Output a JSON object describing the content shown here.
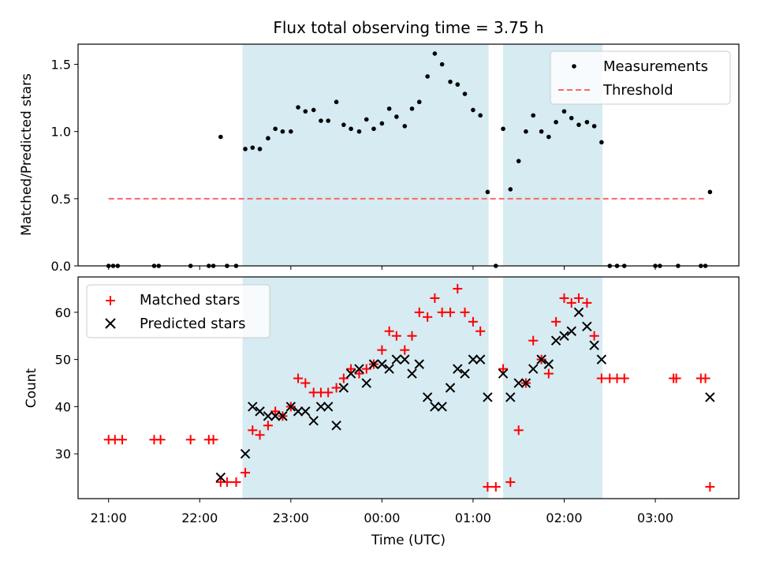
{
  "chart_data": [
    {
      "type": "scatter",
      "title": "Flux total observing time = 3.75 h",
      "xlabel": "",
      "ylabel": "Matched/Predicted stars",
      "xlim_hours": [
        20.665,
        27.917
      ],
      "ylim": [
        0,
        1.65
      ],
      "yticks": [
        0.0,
        0.5,
        1.0,
        1.5
      ],
      "ytick_labels": [
        "0.0",
        "0.5",
        "1.0",
        "1.5"
      ],
      "legend_position": "upper-right",
      "series": [
        {
          "name": "Measurements",
          "marker": "dot",
          "color": "#000000",
          "points": [
            [
              21.0,
              0
            ],
            [
              21.05,
              0
            ],
            [
              21.1,
              0
            ],
            [
              21.5,
              0
            ],
            [
              21.55,
              0
            ],
            [
              21.9,
              0
            ],
            [
              22.1,
              0
            ],
            [
              22.15,
              0
            ],
            [
              22.23,
              0.96
            ],
            [
              22.3,
              0
            ],
            [
              22.4,
              0
            ],
            [
              22.5,
              0.87
            ],
            [
              22.58,
              0.88
            ],
            [
              22.66,
              0.87
            ],
            [
              22.75,
              0.95
            ],
            [
              22.83,
              1.02
            ],
            [
              22.91,
              1.0
            ],
            [
              23.0,
              1.0
            ],
            [
              23.08,
              1.18
            ],
            [
              23.16,
              1.15
            ],
            [
              23.25,
              1.16
            ],
            [
              23.33,
              1.08
            ],
            [
              23.41,
              1.08
            ],
            [
              23.5,
              1.22
            ],
            [
              23.58,
              1.05
            ],
            [
              23.66,
              1.02
            ],
            [
              23.75,
              1.0
            ],
            [
              23.83,
              1.09
            ],
            [
              23.91,
              1.02
            ],
            [
              24.0,
              1.06
            ],
            [
              24.08,
              1.17
            ],
            [
              24.16,
              1.11
            ],
            [
              24.25,
              1.04
            ],
            [
              24.33,
              1.17
            ],
            [
              24.41,
              1.22
            ],
            [
              24.5,
              1.41
            ],
            [
              24.58,
              1.58
            ],
            [
              24.66,
              1.5
            ],
            [
              24.75,
              1.37
            ],
            [
              24.83,
              1.35
            ],
            [
              24.91,
              1.28
            ],
            [
              25.0,
              1.16
            ],
            [
              25.08,
              1.12
            ],
            [
              25.16,
              0.55
            ],
            [
              25.25,
              0
            ],
            [
              25.33,
              1.02
            ],
            [
              25.41,
              0.57
            ],
            [
              25.5,
              0.78
            ],
            [
              25.58,
              1.0
            ],
            [
              25.66,
              1.12
            ],
            [
              25.75,
              1.0
            ],
            [
              25.83,
              0.96
            ],
            [
              25.91,
              1.07
            ],
            [
              26.0,
              1.15
            ],
            [
              26.08,
              1.1
            ],
            [
              26.16,
              1.05
            ],
            [
              26.25,
              1.07
            ],
            [
              26.33,
              1.04
            ],
            [
              26.41,
              0.92
            ],
            [
              26.5,
              0
            ],
            [
              26.58,
              0
            ],
            [
              26.66,
              0
            ],
            [
              27.0,
              0
            ],
            [
              27.05,
              0
            ],
            [
              27.25,
              0
            ],
            [
              27.5,
              0
            ],
            [
              27.55,
              0
            ],
            [
              27.6,
              0.55
            ]
          ]
        },
        {
          "name": "Threshold",
          "style": "dashed",
          "color": "#ff6666",
          "x_range_hours": [
            21.0,
            27.55
          ],
          "y": 0.5
        }
      ]
    },
    {
      "type": "scatter",
      "title": "",
      "xlabel": "Time (UTC)",
      "ylabel": "Count",
      "xlim_hours": [
        20.665,
        27.917
      ],
      "ylim": [
        20.5,
        67.5
      ],
      "yticks": [
        30,
        40,
        50,
        60
      ],
      "ytick_labels": [
        "30",
        "40",
        "50",
        "60"
      ],
      "xticks_hours": [
        21,
        22,
        23,
        24,
        25,
        26,
        27
      ],
      "xtick_labels": [
        "21:00",
        "22:00",
        "23:00",
        "00:00",
        "01:00",
        "02:00",
        "03:00"
      ],
      "legend_position": "upper-left",
      "series": [
        {
          "name": "Matched stars",
          "marker": "plus",
          "color": "#ff0000",
          "points": [
            [
              21.0,
              33
            ],
            [
              21.07,
              33
            ],
            [
              21.15,
              33
            ],
            [
              21.5,
              33
            ],
            [
              21.57,
              33
            ],
            [
              21.9,
              33
            ],
            [
              22.1,
              33
            ],
            [
              22.15,
              33
            ],
            [
              22.23,
              24
            ],
            [
              22.3,
              24
            ],
            [
              22.4,
              24
            ],
            [
              22.5,
              26
            ],
            [
              22.58,
              35
            ],
            [
              22.66,
              34
            ],
            [
              22.75,
              36
            ],
            [
              22.83,
              39
            ],
            [
              22.91,
              38
            ],
            [
              23.0,
              40
            ],
            [
              23.08,
              46
            ],
            [
              23.16,
              45
            ],
            [
              23.25,
              43
            ],
            [
              23.33,
              43
            ],
            [
              23.41,
              43
            ],
            [
              23.5,
              44
            ],
            [
              23.58,
              46
            ],
            [
              23.66,
              48
            ],
            [
              23.75,
              47
            ],
            [
              23.83,
              48
            ],
            [
              23.91,
              49
            ],
            [
              24.0,
              52
            ],
            [
              24.08,
              56
            ],
            [
              24.16,
              55
            ],
            [
              24.25,
              52
            ],
            [
              24.33,
              55
            ],
            [
              24.41,
              60
            ],
            [
              24.5,
              59
            ],
            [
              24.58,
              63
            ],
            [
              24.66,
              60
            ],
            [
              24.75,
              60
            ],
            [
              24.83,
              65
            ],
            [
              24.91,
              60
            ],
            [
              25.0,
              58
            ],
            [
              25.08,
              56
            ],
            [
              25.16,
              23
            ],
            [
              25.25,
              23
            ],
            [
              25.33,
              48
            ],
            [
              25.41,
              24
            ],
            [
              25.5,
              35
            ],
            [
              25.58,
              45
            ],
            [
              25.66,
              54
            ],
            [
              25.75,
              50
            ],
            [
              25.83,
              47
            ],
            [
              25.91,
              58
            ],
            [
              26.0,
              63
            ],
            [
              26.08,
              62
            ],
            [
              26.16,
              63
            ],
            [
              26.25,
              62
            ],
            [
              26.33,
              55
            ],
            [
              26.41,
              46
            ],
            [
              26.5,
              46
            ],
            [
              26.58,
              46
            ],
            [
              26.66,
              46
            ],
            [
              27.2,
              46
            ],
            [
              27.23,
              46
            ],
            [
              27.5,
              46
            ],
            [
              27.55,
              46
            ],
            [
              27.6,
              23
            ]
          ]
        },
        {
          "name": "Predicted stars",
          "marker": "x",
          "color": "#000000",
          "points": [
            [
              22.23,
              25
            ],
            [
              22.5,
              30
            ],
            [
              22.58,
              40
            ],
            [
              22.66,
              39
            ],
            [
              22.75,
              38
            ],
            [
              22.83,
              38
            ],
            [
              22.91,
              38
            ],
            [
              23.0,
              40
            ],
            [
              23.08,
              39
            ],
            [
              23.16,
              39
            ],
            [
              23.25,
              37
            ],
            [
              23.33,
              40
            ],
            [
              23.41,
              40
            ],
            [
              23.5,
              36
            ],
            [
              23.58,
              44
            ],
            [
              23.66,
              47
            ],
            [
              23.75,
              48
            ],
            [
              23.83,
              45
            ],
            [
              23.91,
              49
            ],
            [
              24.0,
              49
            ],
            [
              24.08,
              48
            ],
            [
              24.16,
              50
            ],
            [
              24.25,
              50
            ],
            [
              24.33,
              47
            ],
            [
              24.41,
              49
            ],
            [
              24.5,
              42
            ],
            [
              24.58,
              40
            ],
            [
              24.66,
              40
            ],
            [
              24.75,
              44
            ],
            [
              24.83,
              48
            ],
            [
              24.91,
              47
            ],
            [
              25.0,
              50
            ],
            [
              25.08,
              50
            ],
            [
              25.16,
              42
            ],
            [
              25.33,
              47
            ],
            [
              25.41,
              42
            ],
            [
              25.5,
              45
            ],
            [
              25.58,
              45
            ],
            [
              25.66,
              48
            ],
            [
              25.75,
              50
            ],
            [
              25.83,
              49
            ],
            [
              25.91,
              54
            ],
            [
              26.0,
              55
            ],
            [
              26.08,
              56
            ],
            [
              26.16,
              60
            ],
            [
              26.25,
              57
            ],
            [
              26.33,
              53
            ],
            [
              26.41,
              50
            ],
            [
              27.6,
              42
            ]
          ]
        }
      ]
    }
  ],
  "observing_windows_hours": [
    [
      22.47,
      25.17
    ],
    [
      25.33,
      26.42
    ]
  ],
  "colors": {
    "window_fill": "#add8e6",
    "window_alpha": 0.5
  }
}
